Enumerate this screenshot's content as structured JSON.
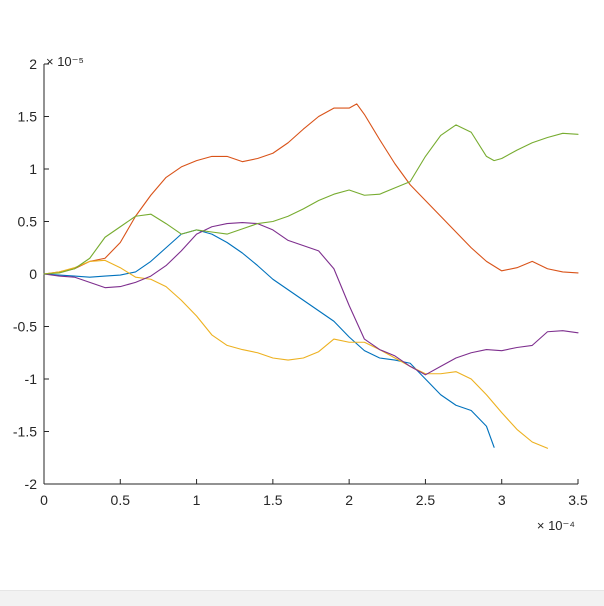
{
  "chart_data": {
    "type": "line",
    "title": "",
    "xlabel": "",
    "ylabel": "",
    "xlim": [
      0,
      0.00035
    ],
    "ylim": [
      -2e-05,
      2e-05
    ],
    "x_exponent_label": "× 10⁻⁴",
    "y_exponent_label": "× 10⁻⁵",
    "x_ticks": [
      0,
      5e-05,
      0.0001,
      0.00015,
      0.0002,
      0.00025,
      0.0003,
      0.00035
    ],
    "x_tick_labels": [
      "0",
      "0.5",
      "1",
      "1.5",
      "2",
      "2.5",
      "3",
      "3.5"
    ],
    "y_ticks": [
      -2e-05,
      -1.5e-05,
      -1e-05,
      -5e-06,
      0,
      5e-06,
      1e-05,
      1.5e-05,
      2e-05
    ],
    "y_tick_labels": [
      "-2",
      "-1.5",
      "-1",
      "-0.5",
      "0",
      "0.5",
      "1",
      "1.5",
      "2"
    ],
    "grid": false,
    "series": [
      {
        "color": "#0072BD",
        "points": [
          [
            0,
            0
          ],
          [
            1e-05,
            -1e-07
          ],
          [
            2e-05,
            -2e-07
          ],
          [
            3e-05,
            -3e-07
          ],
          [
            4e-05,
            -2e-07
          ],
          [
            5e-05,
            -1e-07
          ],
          [
            6e-05,
            2e-07
          ],
          [
            7e-05,
            1.2e-06
          ],
          [
            8e-05,
            2.5e-06
          ],
          [
            9e-05,
            3.8e-06
          ],
          [
            0.0001,
            4.2e-06
          ],
          [
            0.00011,
            3.8e-06
          ],
          [
            0.00012,
            3e-06
          ],
          [
            0.00013,
            2e-06
          ],
          [
            0.00014,
            8e-07
          ],
          [
            0.00015,
            -5e-07
          ],
          [
            0.00016,
            -1.5e-06
          ],
          [
            0.00017,
            -2.5e-06
          ],
          [
            0.00018,
            -3.5e-06
          ],
          [
            0.00019,
            -4.5e-06
          ],
          [
            0.0002,
            -6e-06
          ],
          [
            0.00021,
            -7.3e-06
          ],
          [
            0.00022,
            -8e-06
          ],
          [
            0.00023,
            -8.2e-06
          ],
          [
            0.00024,
            -8.5e-06
          ],
          [
            0.00025,
            -1e-05
          ],
          [
            0.00026,
            -1.15e-05
          ],
          [
            0.00027,
            -1.25e-05
          ],
          [
            0.00028,
            -1.3e-05
          ],
          [
            0.00029,
            -1.45e-05
          ],
          [
            0.000295,
            -1.65e-05
          ]
        ]
      },
      {
        "color": "#D95319",
        "points": [
          [
            0,
            0
          ],
          [
            1e-05,
            2e-07
          ],
          [
            2e-05,
            5e-07
          ],
          [
            3e-05,
            1.2e-06
          ],
          [
            4e-05,
            1.5e-06
          ],
          [
            5e-05,
            3e-06
          ],
          [
            6e-05,
            5.5e-06
          ],
          [
            7e-05,
            7.5e-06
          ],
          [
            8e-05,
            9.2e-06
          ],
          [
            9e-05,
            1.02e-05
          ],
          [
            0.0001,
            1.08e-05
          ],
          [
            0.00011,
            1.12e-05
          ],
          [
            0.00012,
            1.12e-05
          ],
          [
            0.00013,
            1.07e-05
          ],
          [
            0.00014,
            1.1e-05
          ],
          [
            0.00015,
            1.15e-05
          ],
          [
            0.00016,
            1.25e-05
          ],
          [
            0.00017,
            1.38e-05
          ],
          [
            0.00018,
            1.5e-05
          ],
          [
            0.00019,
            1.58e-05
          ],
          [
            0.0002,
            1.58e-05
          ],
          [
            0.000205,
            1.62e-05
          ],
          [
            0.00021,
            1.52e-05
          ],
          [
            0.00022,
            1.28e-05
          ],
          [
            0.00023,
            1.05e-05
          ],
          [
            0.00024,
            8.5e-06
          ],
          [
            0.00025,
            7e-06
          ],
          [
            0.00026,
            5.5e-06
          ],
          [
            0.00027,
            4e-06
          ],
          [
            0.00028,
            2.5e-06
          ],
          [
            0.00029,
            1.2e-06
          ],
          [
            0.0003,
            3e-07
          ],
          [
            0.00031,
            6e-07
          ],
          [
            0.00032,
            1.2e-06
          ],
          [
            0.00033,
            5e-07
          ],
          [
            0.00034,
            2e-07
          ],
          [
            0.00035,
            1e-07
          ]
        ]
      },
      {
        "color": "#EDB120",
        "points": [
          [
            0,
            0
          ],
          [
            1e-05,
            2e-07
          ],
          [
            2e-05,
            6e-07
          ],
          [
            3e-05,
            1.2e-06
          ],
          [
            4e-05,
            1.3e-06
          ],
          [
            5e-05,
            6e-07
          ],
          [
            6e-05,
            -3e-07
          ],
          [
            7e-05,
            -5e-07
          ],
          [
            8e-05,
            -1.2e-06
          ],
          [
            9e-05,
            -2.5e-06
          ],
          [
            0.0001,
            -4e-06
          ],
          [
            0.00011,
            -5.8e-06
          ],
          [
            0.00012,
            -6.8e-06
          ],
          [
            0.00013,
            -7.2e-06
          ],
          [
            0.00014,
            -7.5e-06
          ],
          [
            0.00015,
            -8e-06
          ],
          [
            0.00016,
            -8.2e-06
          ],
          [
            0.00017,
            -8e-06
          ],
          [
            0.00018,
            -7.4e-06
          ],
          [
            0.00019,
            -6.2e-06
          ],
          [
            0.0002,
            -6.5e-06
          ],
          [
            0.00021,
            -6.5e-06
          ],
          [
            0.00022,
            -7.2e-06
          ],
          [
            0.00023,
            -8e-06
          ],
          [
            0.00024,
            -8.8e-06
          ],
          [
            0.00025,
            -9.5e-06
          ],
          [
            0.00026,
            -9.5e-06
          ],
          [
            0.00027,
            -9.3e-06
          ],
          [
            0.00028,
            -1e-05
          ],
          [
            0.00029,
            -1.15e-05
          ],
          [
            0.0003,
            -1.32e-05
          ],
          [
            0.00031,
            -1.48e-05
          ],
          [
            0.00032,
            -1.6e-05
          ],
          [
            0.00033,
            -1.66e-05
          ]
        ]
      },
      {
        "color": "#7E2F8E",
        "points": [
          [
            0,
            0
          ],
          [
            1e-05,
            -2e-07
          ],
          [
            2e-05,
            -3e-07
          ],
          [
            3e-05,
            -8e-07
          ],
          [
            4e-05,
            -1.3e-06
          ],
          [
            5e-05,
            -1.2e-06
          ],
          [
            6e-05,
            -8e-07
          ],
          [
            7e-05,
            -2e-07
          ],
          [
            8e-05,
            8e-07
          ],
          [
            9e-05,
            2.2e-06
          ],
          [
            0.0001,
            3.8e-06
          ],
          [
            0.00011,
            4.5e-06
          ],
          [
            0.00012,
            4.8e-06
          ],
          [
            0.00013,
            4.9e-06
          ],
          [
            0.00014,
            4.8e-06
          ],
          [
            0.00015,
            4.2e-06
          ],
          [
            0.00016,
            3.2e-06
          ],
          [
            0.00017,
            2.7e-06
          ],
          [
            0.00018,
            2.2e-06
          ],
          [
            0.00019,
            5e-07
          ],
          [
            0.0002,
            -3e-06
          ],
          [
            0.00021,
            -6.2e-06
          ],
          [
            0.00022,
            -7.2e-06
          ],
          [
            0.00023,
            -7.8e-06
          ],
          [
            0.00024,
            -8.8e-06
          ],
          [
            0.00025,
            -9.6e-06
          ],
          [
            0.00026,
            -8.8e-06
          ],
          [
            0.00027,
            -8e-06
          ],
          [
            0.00028,
            -7.5e-06
          ],
          [
            0.00029,
            -7.2e-06
          ],
          [
            0.0003,
            -7.3e-06
          ],
          [
            0.00031,
            -7e-06
          ],
          [
            0.00032,
            -6.8e-06
          ],
          [
            0.00033,
            -5.5e-06
          ],
          [
            0.00034,
            -5.4e-06
          ],
          [
            0.00035,
            -5.6e-06
          ]
        ]
      },
      {
        "color": "#77AC30",
        "points": [
          [
            0,
            0
          ],
          [
            1e-05,
            1e-07
          ],
          [
            2e-05,
            5e-07
          ],
          [
            3e-05,
            1.5e-06
          ],
          [
            4e-05,
            3.5e-06
          ],
          [
            5e-05,
            4.5e-06
          ],
          [
            6e-05,
            5.5e-06
          ],
          [
            7e-05,
            5.7e-06
          ],
          [
            8e-05,
            4.8e-06
          ],
          [
            9e-05,
            3.8e-06
          ],
          [
            0.0001,
            4.2e-06
          ],
          [
            0.00011,
            4e-06
          ],
          [
            0.00012,
            3.8e-06
          ],
          [
            0.00013,
            4.3e-06
          ],
          [
            0.00014,
            4.8e-06
          ],
          [
            0.00015,
            5e-06
          ],
          [
            0.00016,
            5.5e-06
          ],
          [
            0.00017,
            6.2e-06
          ],
          [
            0.00018,
            7e-06
          ],
          [
            0.00019,
            7.6e-06
          ],
          [
            0.0002,
            8e-06
          ],
          [
            0.00021,
            7.5e-06
          ],
          [
            0.00022,
            7.6e-06
          ],
          [
            0.00023,
            8.2e-06
          ],
          [
            0.00024,
            8.8e-06
          ],
          [
            0.00025,
            1.12e-05
          ],
          [
            0.00026,
            1.32e-05
          ],
          [
            0.00027,
            1.42e-05
          ],
          [
            0.00028,
            1.35e-05
          ],
          [
            0.00029,
            1.12e-05
          ],
          [
            0.000295,
            1.08e-05
          ],
          [
            0.0003,
            1.1e-05
          ],
          [
            0.00031,
            1.18e-05
          ],
          [
            0.00032,
            1.25e-05
          ],
          [
            0.00033,
            1.3e-05
          ],
          [
            0.00034,
            1.34e-05
          ],
          [
            0.00035,
            1.33e-05
          ]
        ]
      }
    ]
  }
}
